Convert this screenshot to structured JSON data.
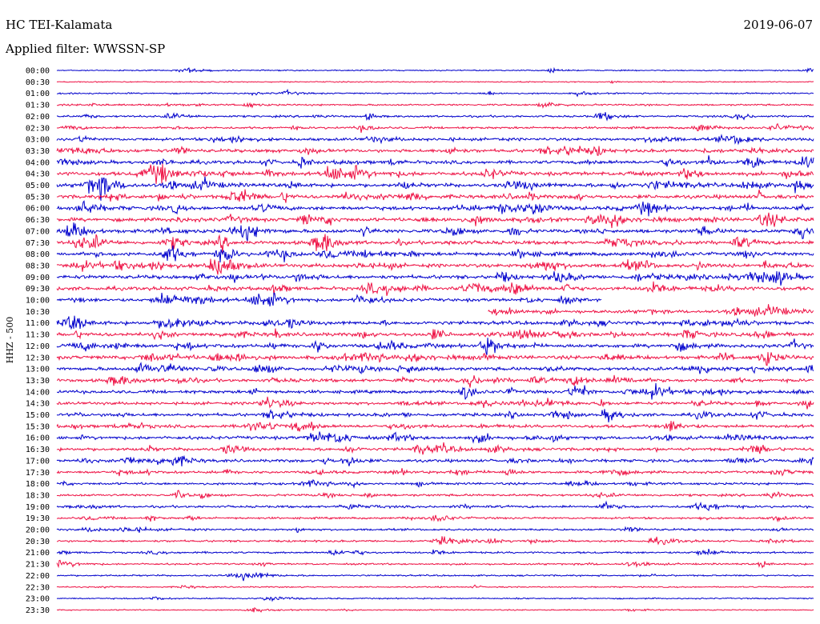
{
  "header": {
    "station": "HC TEI-Kalamata",
    "date": "2019-06-07",
    "filter": "Applied filter: WWSSN-SP"
  },
  "chart_data": {
    "type": "line",
    "title": "",
    "ylabel": "HHZ - 500",
    "xlabel": "",
    "row_labels": [
      "00:00",
      "00:30",
      "01:00",
      "01:30",
      "02:00",
      "02:30",
      "03:00",
      "03:30",
      "04:00",
      "04:30",
      "05:00",
      "05:30",
      "06:00",
      "06:30",
      "07:00",
      "07:30",
      "08:00",
      "08:30",
      "09:00",
      "09:30",
      "10:00",
      "10:30",
      "11:00",
      "11:30",
      "12:00",
      "12:30",
      "13:00",
      "13:30",
      "14:00",
      "14:30",
      "15:00",
      "15:30",
      "16:00",
      "16:30",
      "17:00",
      "17:30",
      "18:00",
      "18:30",
      "19:00",
      "19:30",
      "20:00",
      "20:30",
      "21:00",
      "21:30",
      "22:00",
      "22:30",
      "23:00",
      "23:30"
    ],
    "trace_colors": [
      "#0000cc",
      "#ee1144"
    ],
    "activity": [
      0.15,
      0.12,
      0.25,
      0.35,
      0.45,
      0.5,
      0.75,
      0.85,
      0.9,
      1.0,
      1.0,
      1.0,
      1.0,
      1.0,
      1.0,
      1.0,
      1.0,
      1.0,
      1.0,
      1.0,
      0.8,
      0.9,
      1.0,
      1.0,
      1.0,
      1.0,
      0.95,
      0.85,
      0.85,
      0.75,
      0.8,
      0.8,
      0.85,
      0.8,
      0.75,
      0.6,
      0.55,
      0.55,
      0.55,
      0.45,
      0.45,
      0.45,
      0.4,
      0.35,
      0.3,
      0.2,
      0.2,
      0.15
    ],
    "gap_rows": [
      {
        "row": "10:00",
        "start_fraction": 0.72
      },
      {
        "row": "10:30",
        "end_fraction": 0.57
      }
    ]
  }
}
